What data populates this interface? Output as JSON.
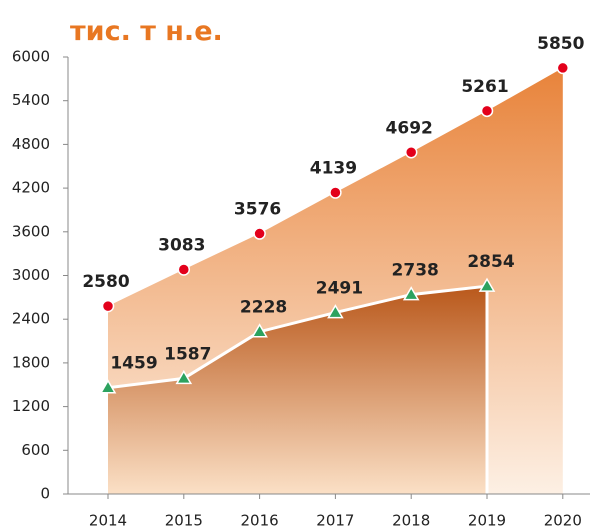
{
  "chart_data": {
    "type": "area",
    "title": "тис. т н.е.",
    "categories": [
      "2014",
      "2015",
      "2016",
      "2017",
      "2018",
      "2019",
      "2020"
    ],
    "series": [
      {
        "color": "#e8833a",
        "marker_color": "#e3001b",
        "marker": "circle",
        "values": [
          2580,
          3083,
          3576,
          4139,
          4692,
          5261,
          5850
        ]
      },
      {
        "color": "#b9581b",
        "marker_color": "#2ca25f",
        "marker": "triangle",
        "values": [
          1459,
          1587,
          2228,
          2491,
          2738,
          2854,
          null
        ]
      }
    ],
    "ylim": [
      0,
      6000
    ],
    "yticks": [
      0,
      600,
      1200,
      1800,
      2400,
      3000,
      3600,
      4200,
      4800,
      5400,
      6000
    ]
  }
}
